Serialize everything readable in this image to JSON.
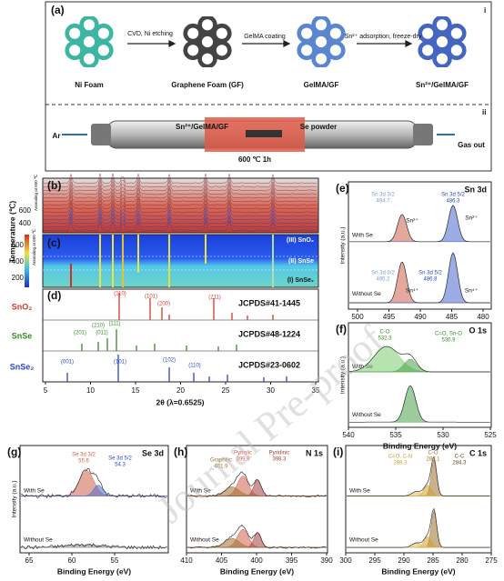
{
  "panel_a": {
    "label": "(a)",
    "part_i": "i",
    "part_ii": "ii",
    "steps": [
      "Ni Foam",
      "Graphene Foam (GF)",
      "GelMA/GF",
      "Sn²⁺/GelMA/GF"
    ],
    "arrows": [
      "CVD, Ni etching",
      "GelMA coating",
      "Sn²⁺ adsorption, freeze-dry"
    ],
    "tube": {
      "inlet": "Ar",
      "sample": "Sn²⁺/GelMA/GF",
      "source": "Se powder",
      "condition": "600 ℃  1h",
      "outlet": "Gas out"
    }
  },
  "panel_b": {
    "label": "(b)",
    "ticks": [
      "600",
      "400"
    ],
    "annealing": "Annealing at 600 ℃"
  },
  "panel_c": {
    "label": "(c)",
    "ticks": [
      "600",
      "400",
      "200"
    ],
    "annealing": "Annealing at 600 ℃",
    "phases": [
      "(III) SnO₂",
      "(II) SnSe",
      "(I) SnSe₂"
    ]
  },
  "y_label_bc": "Temperature (℃)",
  "panel_d": {
    "label": "(d)",
    "refs": [
      {
        "phase": "SnO₂",
        "card": "JCPDS#41-1445",
        "planes": [
          "(110)",
          "(101)",
          "(200)",
          "(211)"
        ]
      },
      {
        "phase": "SnSe",
        "card": "JCPDS#48-1224",
        "planes": [
          "(210)",
          "(111)",
          "(201)",
          "(011)"
        ]
      },
      {
        "phase": "SnSe₂",
        "card": "JCPDS#23-0602",
        "planes": [
          "(001)",
          "(101)",
          "(102)",
          "(110)"
        ]
      }
    ],
    "xticks": [
      "5",
      "10",
      "15",
      "20",
      "25",
      "30",
      "35"
    ],
    "x_label": "2θ (λ=0.6525)"
  },
  "panel_e": {
    "label": "(e)",
    "title": "Sn 3d",
    "y_label": "Intensity (a.u.)",
    "samples": [
      "With Se",
      "Without Se"
    ],
    "peaks": [
      "Sn 3d 3/2",
      "494.7",
      "Sn 3d 5/2",
      "486.3",
      "Sn 3d 3/2",
      "495.2",
      "Sn 3d 5/2",
      "486.8"
    ],
    "species": [
      "Sn²⁺",
      "Sn²⁺",
      "Sn⁴⁺",
      "Sn⁴⁺"
    ],
    "xticks": [
      "500",
      "495",
      "490",
      "485",
      "480"
    ]
  },
  "panel_f": {
    "label": "(f)",
    "title": "O 1s",
    "y_label": "Intensity (a.u.)",
    "samples": [
      "With Se",
      "Without Se"
    ],
    "peaks": [
      "C-O",
      "532.3",
      "C=O, Sn-O",
      "530.9"
    ],
    "xticks": [
      "540",
      "535",
      "530",
      "525"
    ],
    "x_label": "Binding Energy (eV)"
  },
  "panel_g": {
    "label": "(g)",
    "title": "Se 3d",
    "y_label": "Intensity (a.u.)",
    "samples": [
      "With Se",
      "Without Se"
    ],
    "peaks": [
      "Se 3d 3/2",
      "55.6",
      "Se 3d 5/2",
      "54.3"
    ],
    "xticks": [
      "65",
      "60",
      "55"
    ],
    "x_label": "Binding Energy (eV)"
  },
  "panel_h": {
    "label": "(h)",
    "title": "N 1s",
    "samples": [
      "With Se",
      "Without Se"
    ],
    "peaks": [
      "Pyrrolic",
      "399.9",
      "Pyridinic",
      "398.3",
      "Graphitic",
      "401.9"
    ],
    "xticks": [
      "410",
      "405",
      "400",
      "395",
      "390"
    ],
    "x_label": "Binding Energy (eV)"
  },
  "panel_i": {
    "label": "(i)",
    "title": "C 1s",
    "samples": [
      "With Se",
      "Without Se"
    ],
    "peaks": [
      "C=O, C-N",
      "288.3",
      "C-O",
      "286.1",
      "C-C",
      "284.3"
    ],
    "xticks": [
      "300",
      "295",
      "290",
      "285",
      "280",
      "275"
    ],
    "x_label": "Binding Energy (eV)"
  },
  "watermark": "Journal Pre-proof"
}
